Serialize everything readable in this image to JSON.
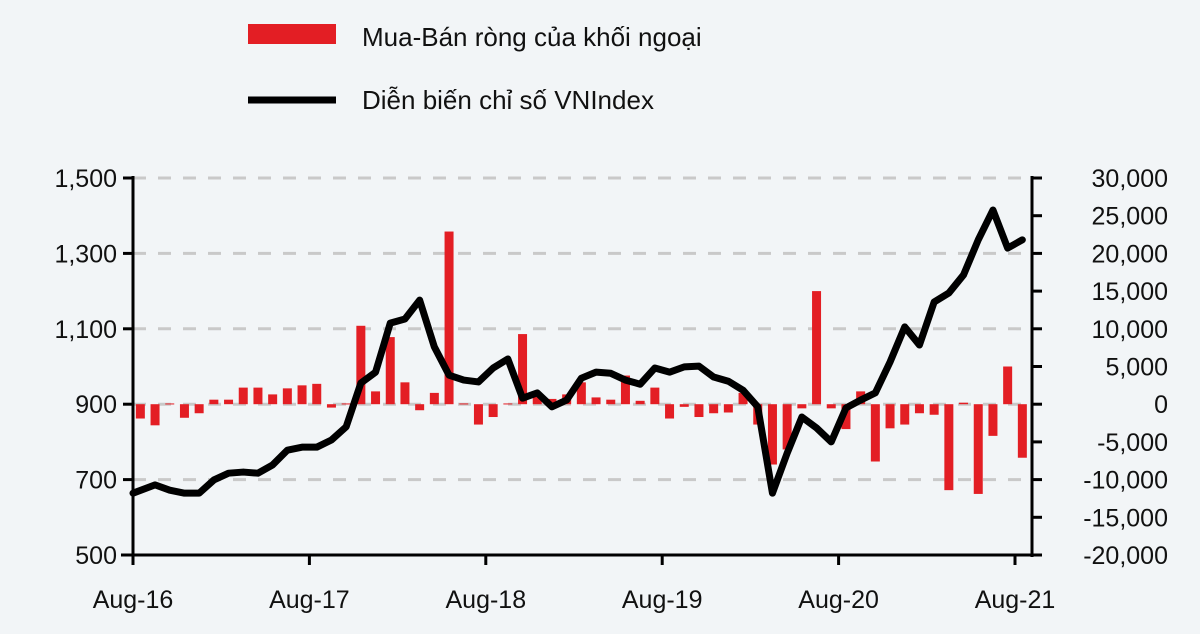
{
  "chart_data": {
    "type": "bar+line",
    "legend": {
      "placement": "top",
      "items": [
        {
          "label": "Mua-Bán ròng của khối ngoại",
          "color": "#e31e24",
          "type": "bar"
        },
        {
          "label": "Diễn biến chỉ số VNIndex",
          "color": "#000000",
          "type": "line"
        }
      ]
    },
    "x_tick_labels": [
      "Aug-16",
      "Aug-17",
      "Aug-18",
      "Aug-19",
      "Aug-20",
      "Aug-21"
    ],
    "months": [
      "Aug-16",
      "Sep-16",
      "Oct-16",
      "Nov-16",
      "Dec-16",
      "Jan-17",
      "Feb-17",
      "Mar-17",
      "Apr-17",
      "May-17",
      "Jun-17",
      "Jul-17",
      "Aug-17",
      "Sep-17",
      "Oct-17",
      "Nov-17",
      "Dec-17",
      "Jan-18",
      "Feb-18",
      "Mar-18",
      "Apr-18",
      "May-18",
      "Jun-18",
      "Jul-18",
      "Aug-18",
      "Sep-18",
      "Oct-18",
      "Nov-18",
      "Dec-18",
      "Jan-19",
      "Feb-19",
      "Mar-19",
      "Apr-19",
      "May-19",
      "Jun-19",
      "Jul-19",
      "Aug-19",
      "Sep-19",
      "Oct-19",
      "Nov-19",
      "Dec-19",
      "Jan-20",
      "Feb-20",
      "Mar-20",
      "Apr-20",
      "May-20",
      "Jun-20",
      "Jul-20",
      "Aug-20",
      "Sep-20",
      "Oct-20",
      "Nov-20",
      "Dec-20",
      "Jan-21",
      "Feb-21",
      "Mar-21",
      "Apr-21",
      "May-21",
      "Jun-21",
      "Jul-21",
      "Aug-21"
    ],
    "left_axis": {
      "ylim": [
        500,
        1500
      ],
      "ticks": [
        "500",
        "700",
        "900",
        "1,100",
        "1,300",
        "1,500"
      ],
      "tick_values": [
        500,
        700,
        900,
        1100,
        1300,
        1500
      ]
    },
    "right_axis": {
      "ylim": [
        -20000,
        30000
      ],
      "ticks": [
        "-20,000",
        "-15,000",
        "-10,000",
        "-5,000",
        "0",
        "5,000",
        "10,000",
        "15,000",
        "20,000",
        "25,000",
        "30,000"
      ],
      "tick_values": [
        -20000,
        -15000,
        -10000,
        -5000,
        0,
        5000,
        10000,
        15000,
        20000,
        25000,
        30000
      ]
    },
    "grid": "horizontal dashed",
    "series": [
      {
        "name": "Mua-Bán ròng của khối ngoại",
        "axis": "right",
        "type": "bar",
        "color": "#e31e24",
        "values": [
          -1900,
          -2800,
          100,
          -1800,
          -1200,
          600,
          600,
          2200,
          2200,
          1300,
          2100,
          2500,
          2700,
          -450,
          100,
          10400,
          1700,
          8900,
          2900,
          -800,
          1500,
          22900,
          100,
          -2700,
          -1700,
          100,
          9300,
          1100,
          700,
          1300,
          2900,
          900,
          600,
          3800,
          450,
          2200,
          -1900,
          -350,
          -1700,
          -1200,
          -1100,
          1500,
          -2700,
          -8000,
          -6000,
          -550,
          15000,
          -550,
          -3300,
          1700,
          -7600,
          -3200,
          -2700,
          -1200,
          -1400,
          -11400,
          200,
          -11900,
          -4200,
          5000,
          -7100
        ]
      },
      {
        "name": "Diễn biến chỉ số VNIndex",
        "axis": "left",
        "type": "line",
        "color": "#000000",
        "values": [
          664,
          686,
          672,
          664,
          664,
          699,
          717,
          720,
          717,
          739,
          778,
          786,
          786,
          805,
          840,
          956,
          985,
          1115,
          1126,
          1176,
          1052,
          977,
          964,
          959,
          996,
          1020,
          916,
          930,
          893,
          911,
          969,
          985,
          982,
          964,
          953,
          996,
          985,
          999,
          1001,
          972,
          961,
          937,
          893,
          664,
          770,
          866,
          837,
          800,
          890,
          911,
          930,
          1012,
          1105,
          1057,
          1171,
          1195,
          1243,
          1336,
          1415,
          1314,
          1336
        ]
      }
    ]
  }
}
